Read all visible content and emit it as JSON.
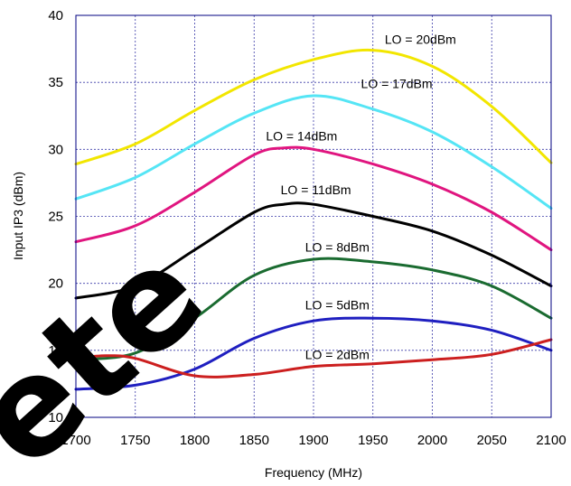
{
  "chart_data": {
    "type": "line",
    "xlabel": "Frequency (MHz)",
    "ylabel": "Input IP3 (dBm)",
    "xlim": [
      1700,
      2100
    ],
    "ylim": [
      10,
      40
    ],
    "xticks": [
      "1700",
      "1750",
      "1800",
      "1850",
      "1900",
      "1950",
      "2000",
      "2050",
      "2100"
    ],
    "yticks": [
      "10",
      "15",
      "20",
      "25",
      "30",
      "35",
      "40"
    ],
    "grid": true,
    "series": [
      {
        "name": "LO = 20dBm",
        "color": "#f2e600",
        "x": [
          1700,
          1750,
          1800,
          1850,
          1900,
          1950,
          2000,
          2050,
          2100
        ],
        "y": [
          28.9,
          30.4,
          32.9,
          35.2,
          36.7,
          37.4,
          36.2,
          33.2,
          29.0
        ]
      },
      {
        "name": "LO = 17dBm",
        "color": "#55e5f5",
        "x": [
          1700,
          1750,
          1800,
          1850,
          1900,
          1950,
          2000,
          2050,
          2100
        ],
        "y": [
          26.3,
          27.9,
          30.4,
          32.7,
          34.0,
          33.0,
          31.3,
          28.7,
          25.6
        ]
      },
      {
        "name": "LO = 14dBm",
        "color": "#e0157f",
        "x": [
          1700,
          1750,
          1800,
          1850,
          1875,
          1900,
          1950,
          2000,
          2050,
          2100
        ],
        "y": [
          23.1,
          24.3,
          26.8,
          29.6,
          30.1,
          30.0,
          28.9,
          27.4,
          25.3,
          22.5
        ]
      },
      {
        "name": "LO = 11dBm",
        "color": "#000000",
        "x": [
          1700,
          1750,
          1800,
          1850,
          1875,
          1900,
          1950,
          2000,
          2050,
          2100
        ],
        "y": [
          18.9,
          19.8,
          22.5,
          25.3,
          25.9,
          25.9,
          25.0,
          23.9,
          22.1,
          19.8
        ]
      },
      {
        "name": "LO = 8dBm",
        "color": "#1a6b30",
        "x": [
          1700,
          1750,
          1800,
          1850,
          1900,
          1950,
          2000,
          2050,
          2100
        ],
        "y": [
          14.3,
          14.8,
          17.4,
          20.6,
          21.8,
          21.6,
          21.0,
          19.8,
          17.4
        ]
      },
      {
        "name": "LO = 5dBm",
        "color": "#1f1fc0",
        "x": [
          1700,
          1750,
          1800,
          1850,
          1900,
          1950,
          2000,
          2050,
          2100
        ],
        "y": [
          12.1,
          12.4,
          13.6,
          15.9,
          17.2,
          17.4,
          17.2,
          16.5,
          15.0
        ]
      },
      {
        "name": "LO = 2dBm",
        "color": "#cc1f1f",
        "x": [
          1700,
          1725,
          1750,
          1800,
          1850,
          1900,
          1950,
          2000,
          2050,
          2100
        ],
        "y": [
          14.4,
          14.6,
          14.4,
          13.1,
          13.2,
          13.8,
          14.0,
          14.3,
          14.7,
          15.8
        ]
      }
    ],
    "annotations": [
      {
        "text": "LO = 20dBm",
        "x": 1990,
        "y": 38.2
      },
      {
        "text": "LO = 17dBm",
        "x": 1970,
        "y": 34.9
      },
      {
        "text": "LO = 14dBm",
        "x": 1890,
        "y": 31.0
      },
      {
        "text": "LO = 11dBm",
        "x": 1902,
        "y": 27.0
      },
      {
        "text": "LO = 8dBm",
        "x": 1920,
        "y": 22.7
      },
      {
        "text": "LO = 5dBm",
        "x": 1920,
        "y": 18.4
      },
      {
        "text": "LO = 2dBm",
        "x": 1920,
        "y": 14.7
      }
    ],
    "watermark": "ete"
  }
}
